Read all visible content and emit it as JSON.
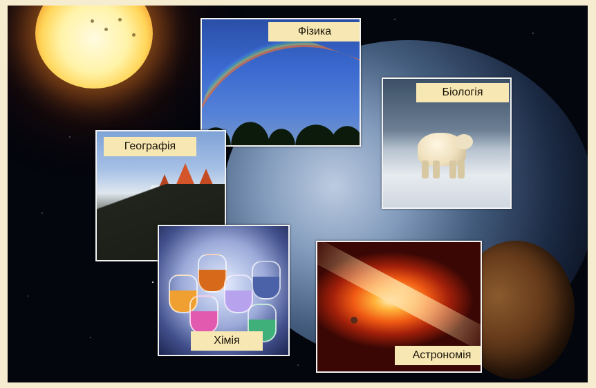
{
  "cards": {
    "physics": {
      "label": "Фізика"
    },
    "biology": {
      "label": "Біологія"
    },
    "geography": {
      "label": "Географія"
    },
    "chemistry": {
      "label": "Хімія"
    },
    "astronomy": {
      "label": "Астрономія"
    }
  },
  "colors": {
    "label_background": "#f7e7b3",
    "border": "#f2f2f2",
    "space": "#04060d",
    "page_background": "#f6ecd0"
  }
}
